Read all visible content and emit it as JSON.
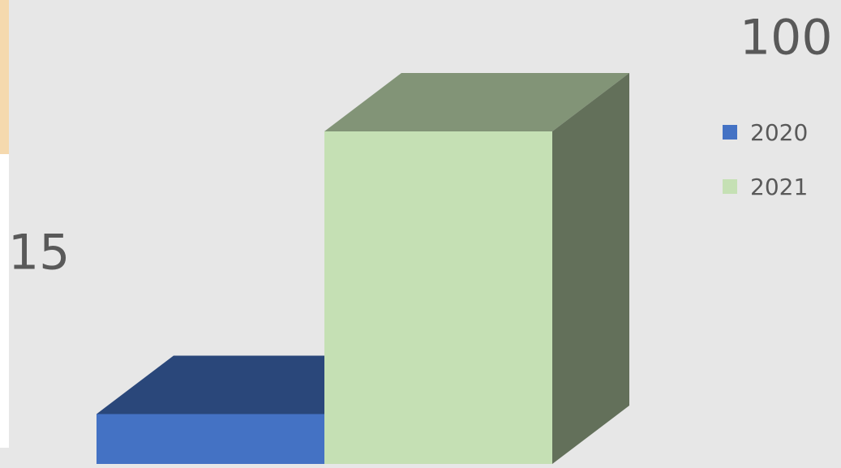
{
  "chart_data": {
    "type": "bar",
    "series": [
      {
        "name": "2020",
        "color": "#4472c4",
        "values": [
          15
        ]
      },
      {
        "name": "2021",
        "color": "#c5e0b4",
        "values": [
          100
        ]
      }
    ]
  }
}
